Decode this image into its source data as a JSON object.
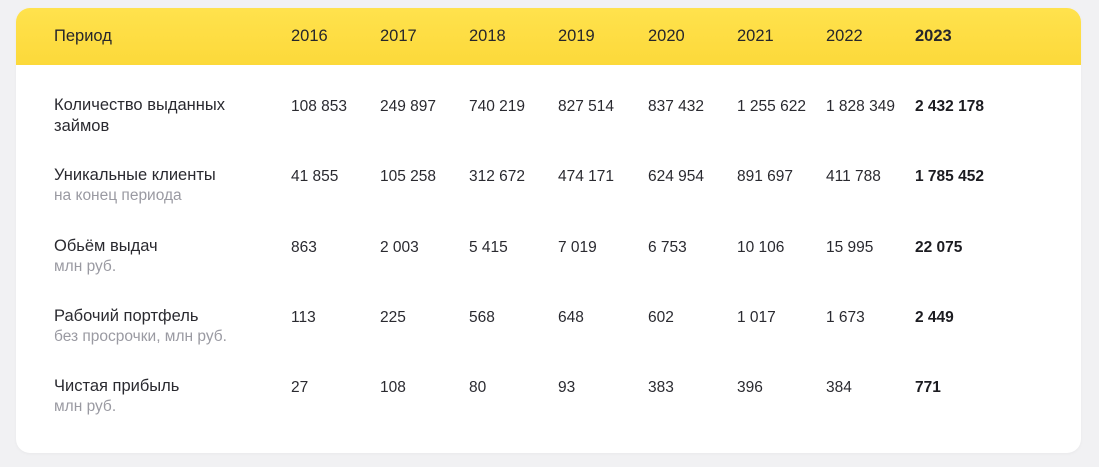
{
  "header": {
    "period_label": "Период",
    "years": [
      "2016",
      "2017",
      "2018",
      "2019",
      "2020",
      "2021",
      "2022",
      "2023"
    ]
  },
  "rows": [
    {
      "label": "Количество выданных займов",
      "sublabel": "",
      "values": [
        "108 853",
        "249 897",
        "740 219",
        "827 514",
        "837 432",
        "1 255 622",
        "1 828 349",
        "2 432 178"
      ]
    },
    {
      "label": "Уникальные клиенты",
      "sublabel": "на конец периода",
      "values": [
        "41 855",
        "105 258",
        "312 672",
        "474 171",
        "624 954",
        "891 697",
        "411 788",
        "1 785 452"
      ]
    },
    {
      "label": "Обьём выдач",
      "sublabel": "млн руб.",
      "values": [
        "863",
        "2 003",
        "5 415",
        "7 019",
        "6 753",
        "10 106",
        "15 995",
        "22 075"
      ]
    },
    {
      "label": "Рабочий портфель",
      "sublabel": "без просрочки, млн руб.",
      "values": [
        "113",
        "225",
        "568",
        "648",
        "602",
        "1 017",
        "1 673",
        "2 449"
      ]
    },
    {
      "label": "Чистая прибыль",
      "sublabel": "млн руб.",
      "values": [
        "27",
        "108",
        "80",
        "93",
        "383",
        "396",
        "384",
        "771"
      ]
    }
  ],
  "colors": {
    "header_bg": "#fdde4a",
    "card_bg": "#ffffff",
    "page_bg": "#f1f1f3",
    "text": "#2a2a30",
    "subtext": "#9a9aa2"
  }
}
